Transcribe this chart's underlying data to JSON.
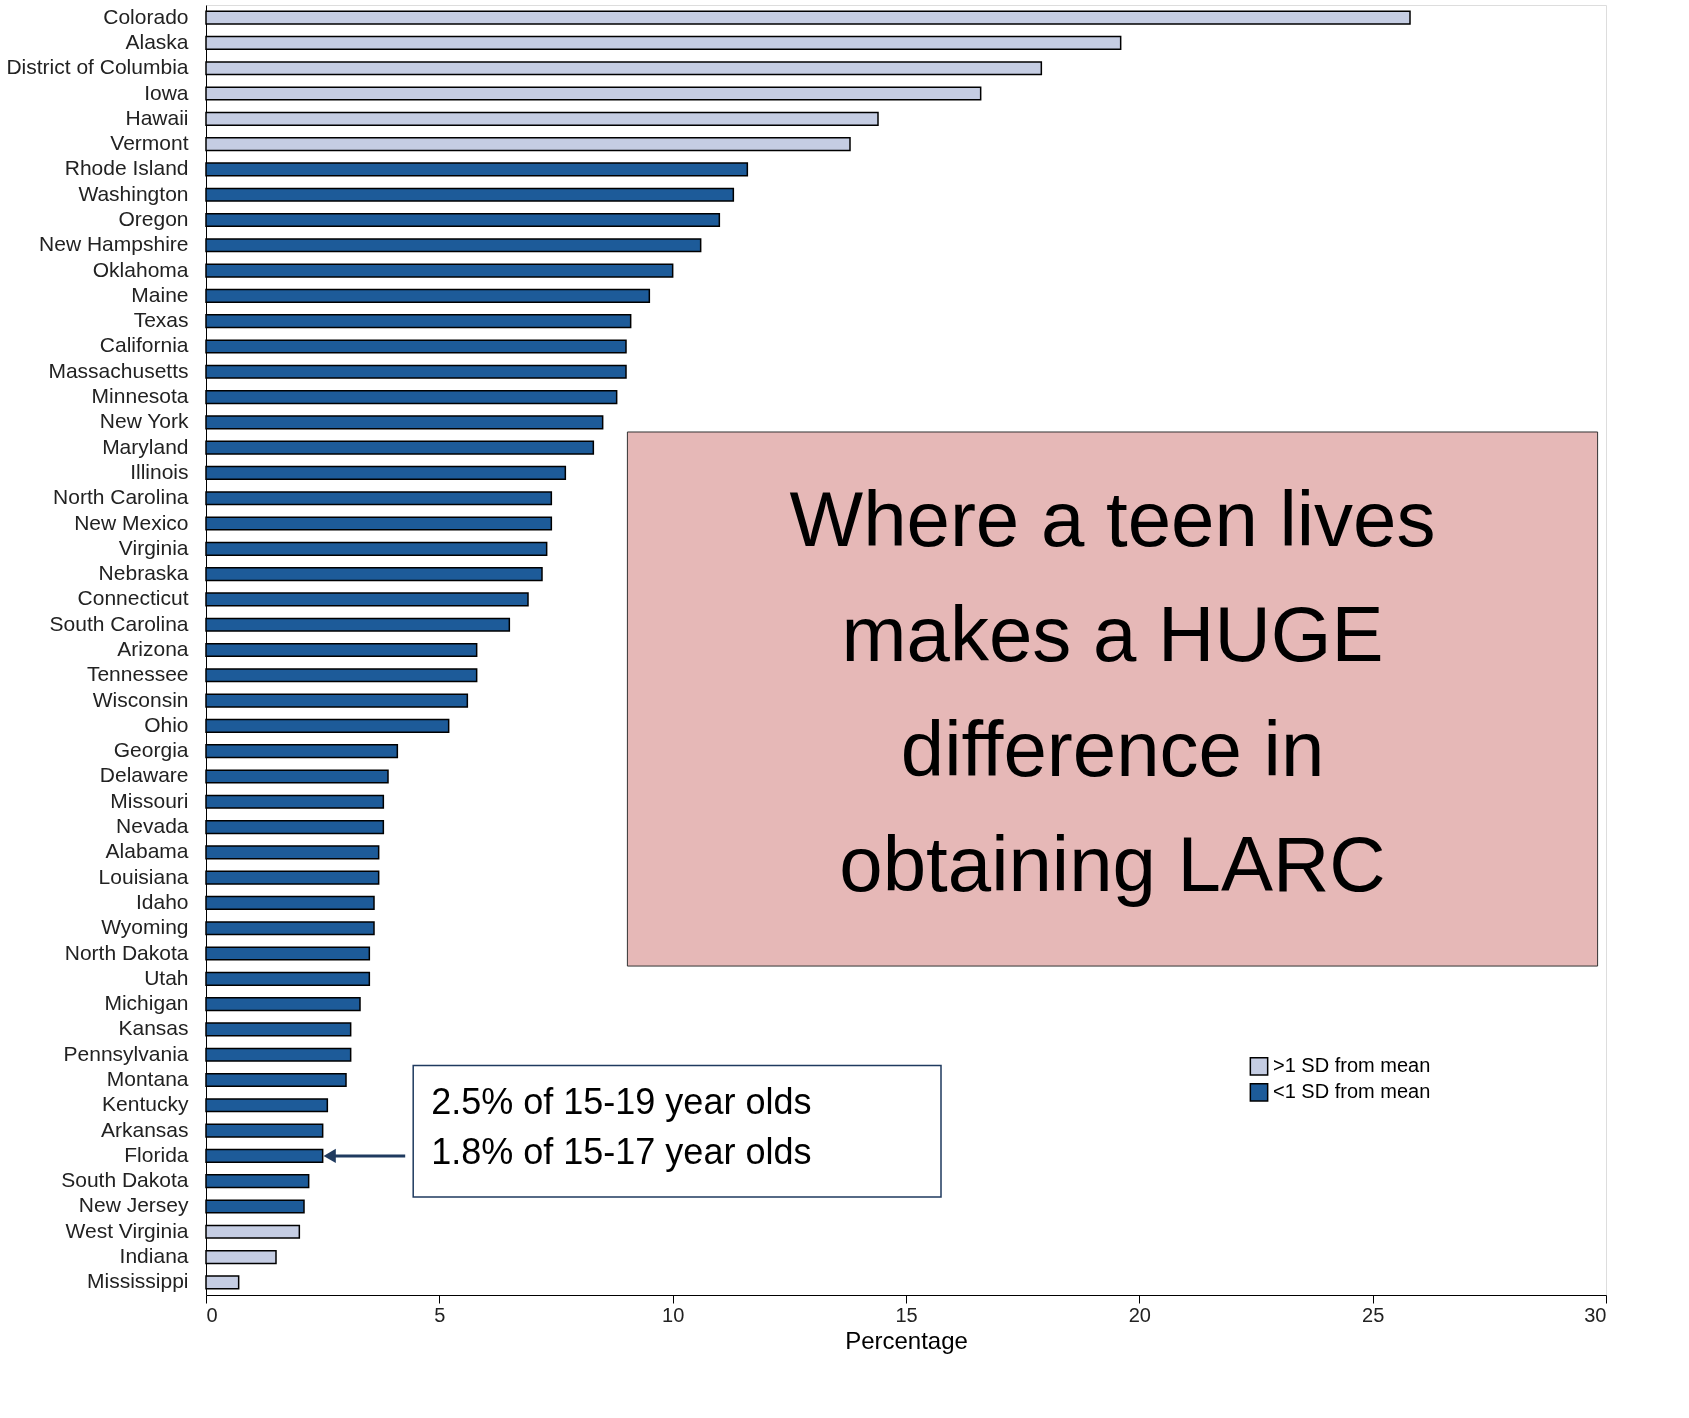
{
  "chart_data": {
    "type": "bar",
    "orientation": "horizontal",
    "xlabel": "Percentage",
    "categories": [
      "Colorado",
      "Alaska",
      "District of Columbia",
      "Iowa",
      "Hawaii",
      "Vermont",
      "Rhode Island",
      "Washington",
      "Oregon",
      "New Hampshire",
      "Oklahoma",
      "Maine",
      "Texas",
      "California",
      "Massachusetts",
      "Minnesota",
      "New York",
      "Maryland",
      "Illinois",
      "North Carolina",
      "New Mexico",
      "Virginia",
      "Nebraska",
      "Connecticut",
      "South Carolina",
      "Arizona",
      "Tennessee",
      "Wisconsin",
      "Ohio",
      "Georgia",
      "Delaware",
      "Missouri",
      "Nevada",
      "Alabama",
      "Louisiana",
      "Idaho",
      "Wyoming",
      "North Dakota",
      "Utah",
      "Michigan",
      "Kansas",
      "Pennsylvania",
      "Montana",
      "Kentucky",
      "Arkansas",
      "Florida",
      "South Dakota",
      "New Jersey",
      "West Virginia",
      "Indiana",
      "Mississippi"
    ],
    "series": [
      {
        "name": ">1 SD from mean",
        "color": "#c5cde3",
        "values": [
          25.8,
          19.6,
          17.9,
          16.6,
          14.4,
          13.8,
          null,
          null,
          null,
          null,
          null,
          null,
          null,
          null,
          null,
          null,
          null,
          null,
          null,
          null,
          null,
          null,
          null,
          null,
          null,
          null,
          null,
          null,
          null,
          null,
          null,
          null,
          null,
          null,
          null,
          null,
          null,
          null,
          null,
          null,
          null,
          null,
          null,
          null,
          null,
          null,
          null,
          null,
          2.0,
          1.5,
          0.7
        ]
      },
      {
        "name": "<1 SD from mean",
        "color": "#1d5b99",
        "values": [
          null,
          null,
          null,
          null,
          null,
          null,
          11.6,
          11.3,
          11.0,
          10.6,
          10.0,
          9.5,
          9.1,
          9.0,
          9.0,
          8.8,
          8.5,
          8.3,
          7.7,
          7.4,
          7.4,
          7.3,
          7.2,
          6.9,
          6.5,
          5.8,
          5.8,
          5.6,
          5.2,
          4.1,
          3.9,
          3.8,
          3.8,
          3.7,
          3.7,
          3.6,
          3.6,
          3.5,
          3.5,
          3.3,
          3.1,
          3.1,
          3.0,
          2.6,
          2.5,
          2.5,
          2.2,
          2.1,
          null,
          null,
          null
        ]
      }
    ],
    "xlim": [
      0,
      30
    ],
    "xticks": [
      0,
      5,
      10,
      15,
      20,
      25,
      30
    ],
    "grid": false,
    "legend": "bottom right",
    "annotations": [
      "Where a teen lives makes a HUGE difference in obtaining LARC",
      {
        "text": "2.5% of 15-19 year olds\n1.8% of 15-17 year olds",
        "x": 2.5,
        "y": "Florida"
      }
    ]
  }
}
